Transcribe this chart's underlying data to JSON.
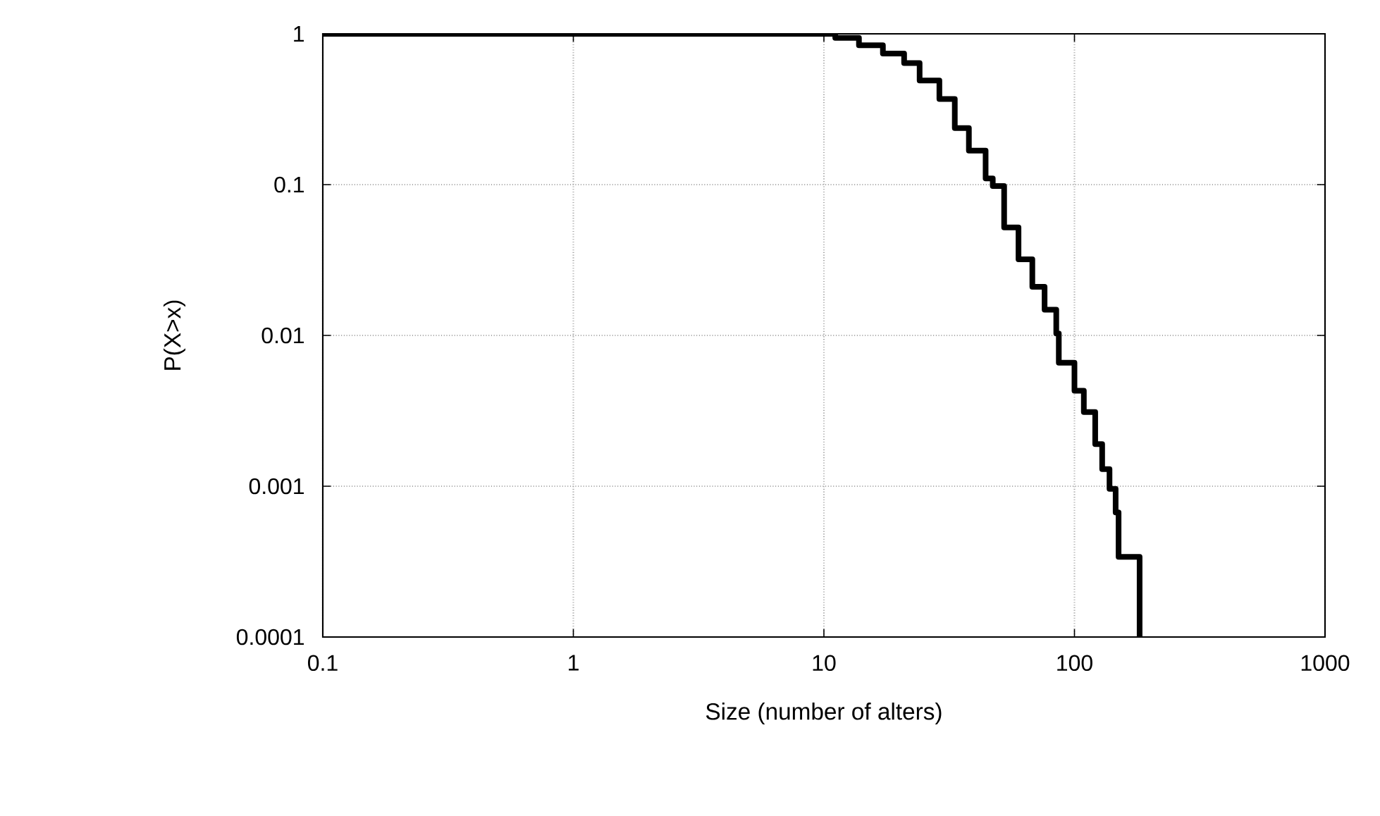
{
  "chart_data": {
    "type": "step",
    "xlabel": "Size (number of alters)",
    "ylabel": "P(X>x)",
    "x": [
      0.1,
      7.2,
      11.1,
      13.8,
      17.2,
      20.9,
      24.1,
      28.9,
      33.3,
      37.9,
      44.2,
      47.2,
      52.4,
      59.8,
      67.9,
      76,
      84.6,
      86.6,
      100,
      109,
      121,
      129,
      138,
      146,
      150,
      182
    ],
    "values": [
      1,
      1,
      0.94,
      0.84,
      0.74,
      0.64,
      0.49,
      0.37,
      0.237,
      0.168,
      0.11,
      0.098,
      0.052,
      0.032,
      0.021,
      0.0148,
      0.0103,
      0.0066,
      0.0043,
      0.0031,
      0.0019,
      0.0013,
      0.00096,
      0.00067,
      0.00034,
      0.0001
    ],
    "color": "#000000",
    "line_style": "solid",
    "xlim": [
      0.1,
      1000
    ],
    "ylim": [
      0.0001,
      1
    ],
    "xticks": [
      0.1,
      1,
      10,
      100,
      1000
    ],
    "yticks": [
      0.0001,
      0.001,
      0.01,
      0.1,
      1
    ],
    "log": "xy",
    "grid": true
  }
}
